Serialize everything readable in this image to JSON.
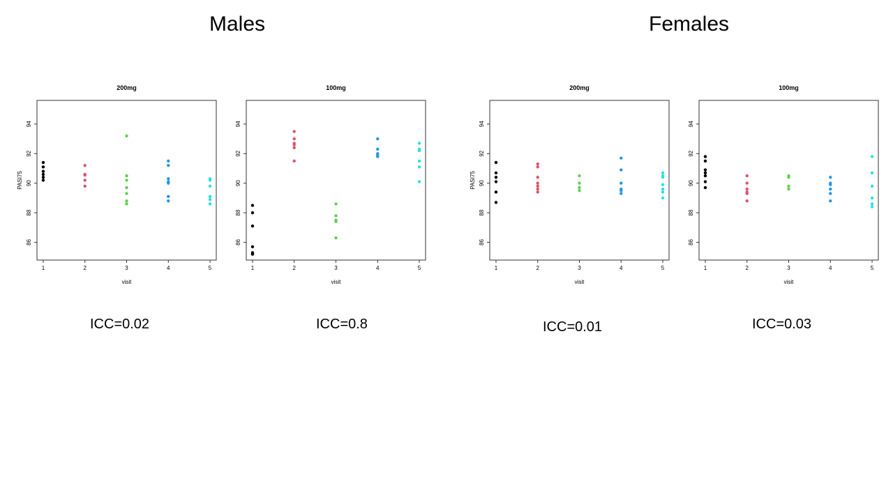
{
  "groups": [
    {
      "title": "Males"
    },
    {
      "title": "Females"
    }
  ],
  "icc": [
    "ICC=0.02",
    "ICC=0.8",
    "ICC=0.01",
    "ICC=0.03"
  ],
  "colors": [
    "#000000",
    "#DF536B",
    "#61D04F",
    "#2297E6",
    "#28E2E5"
  ],
  "chart_data": [
    {
      "type": "scatter",
      "title": "200mg",
      "xlabel": "visit",
      "ylabel": "PASI75",
      "x_ticks": [
        "1",
        "2",
        "3",
        "4",
        "5"
      ],
      "y_ticks": [
        "86",
        "88",
        "90",
        "92",
        "94"
      ],
      "xlim": [
        0.85,
        5.15
      ],
      "ylim": [
        84.8,
        95.6
      ],
      "show_ylabel": true,
      "series": [
        {
          "x": 1,
          "values": [
            91.4,
            91.1,
            90.8,
            90.6,
            90.4,
            90.2
          ]
        },
        {
          "x": 2,
          "values": [
            91.2,
            90.6,
            90.55,
            90.2,
            89.8
          ]
        },
        {
          "x": 3,
          "values": [
            93.2,
            90.5,
            90.2,
            89.7,
            89.3,
            88.8,
            88.6
          ]
        },
        {
          "x": 4,
          "values": [
            91.5,
            91.2,
            90.3,
            90.1,
            90.0,
            89.1,
            88.8
          ]
        },
        {
          "x": 5,
          "values": [
            90.3,
            90.2,
            89.8,
            89.1,
            88.9,
            88.6
          ]
        }
      ]
    },
    {
      "type": "scatter",
      "title": "100mg",
      "xlabel": "visit",
      "ylabel": "",
      "x_ticks": [
        "1",
        "2",
        "3",
        "4",
        "5"
      ],
      "y_ticks": [
        "86",
        "88",
        "90",
        "92",
        "94"
      ],
      "xlim": [
        0.85,
        5.15
      ],
      "ylim": [
        84.8,
        95.6
      ],
      "show_ylabel": false,
      "series": [
        {
          "x": 1,
          "values": [
            88.5,
            88.0,
            87.1,
            85.7,
            85.3,
            85.2
          ]
        },
        {
          "x": 2,
          "values": [
            93.5,
            93.0,
            92.7,
            92.6,
            92.4,
            91.5
          ]
        },
        {
          "x": 3,
          "values": [
            88.6,
            87.8,
            87.5,
            87.4,
            86.3
          ]
        },
        {
          "x": 4,
          "values": [
            93.0,
            92.3,
            92.0,
            91.9,
            91.8
          ]
        },
        {
          "x": 5,
          "values": [
            92.7,
            92.3,
            92.2,
            91.5,
            91.1,
            90.1
          ]
        }
      ]
    },
    {
      "type": "scatter",
      "title": "200mg",
      "xlabel": "visit",
      "ylabel": "PASI75",
      "x_ticks": [
        "1",
        "2",
        "3",
        "4",
        "5"
      ],
      "y_ticks": [
        "86",
        "88",
        "90",
        "92",
        "94"
      ],
      "xlim": [
        0.85,
        5.15
      ],
      "ylim": [
        84.8,
        95.6
      ],
      "show_ylabel": true,
      "series": [
        {
          "x": 1,
          "values": [
            91.4,
            90.7,
            90.4,
            90.1,
            89.4,
            88.7
          ]
        },
        {
          "x": 2,
          "values": [
            91.3,
            91.1,
            90.4,
            90.0,
            89.8,
            89.6,
            89.4
          ]
        },
        {
          "x": 3,
          "values": [
            90.5,
            90.0,
            89.7,
            89.5
          ]
        },
        {
          "x": 4,
          "values": [
            91.7,
            90.9,
            90.0,
            89.6,
            89.5,
            89.3
          ]
        },
        {
          "x": 5,
          "values": [
            90.7,
            90.5,
            90.4,
            89.9,
            89.6,
            89.4,
            89.0
          ]
        }
      ]
    },
    {
      "type": "scatter",
      "title": "100mg",
      "xlabel": "visit",
      "ylabel": "",
      "x_ticks": [
        "1",
        "2",
        "3",
        "4",
        "5"
      ],
      "y_ticks": [
        "86",
        "88",
        "90",
        "92",
        "94"
      ],
      "xlim": [
        0.85,
        5.15
      ],
      "ylim": [
        84.8,
        95.6
      ],
      "show_ylabel": false,
      "series": [
        {
          "x": 1,
          "values": [
            91.8,
            91.5,
            90.9,
            90.7,
            90.5,
            90.1,
            89.7
          ]
        },
        {
          "x": 2,
          "values": [
            90.5,
            90.0,
            89.6,
            89.4,
            89.3,
            88.8
          ]
        },
        {
          "x": 3,
          "values": [
            90.5,
            90.4,
            89.8,
            89.6
          ]
        },
        {
          "x": 4,
          "values": [
            90.4,
            90.0,
            89.9,
            89.6,
            89.3,
            88.8
          ]
        },
        {
          "x": 5,
          "values": [
            91.8,
            90.7,
            89.8,
            89.0,
            88.6,
            88.4
          ]
        }
      ]
    }
  ]
}
